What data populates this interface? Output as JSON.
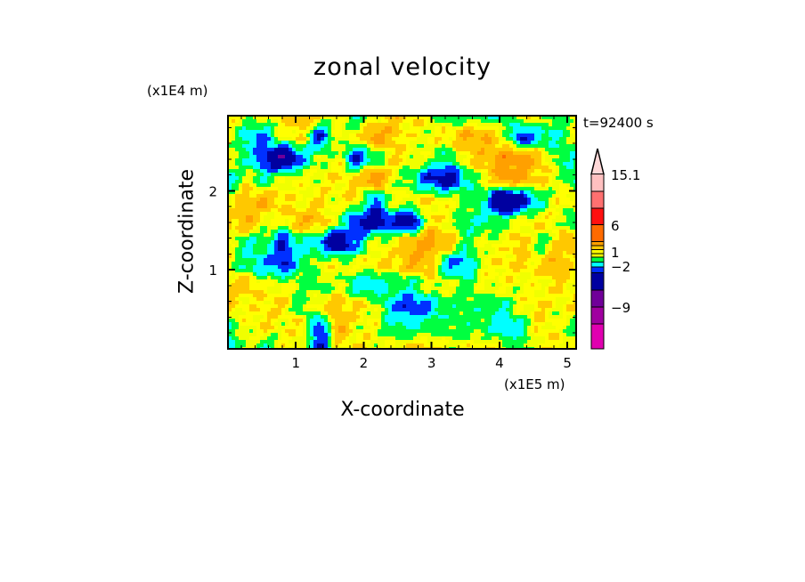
{
  "chart_data": {
    "type": "heatmap",
    "title": "zonal velocity",
    "xlabel": "X-coordinate",
    "ylabel": "Z-coordinate",
    "x_unit_label": "(x1E5 m)",
    "y_unit_label": "(x1E4 m)",
    "time_label": "t=92400 s",
    "xlim": [
      0,
      5.13
    ],
    "ylim": [
      0,
      2.95
    ],
    "xticks": [
      "1",
      "2",
      "3",
      "4",
      "5"
    ],
    "xtick_values": [
      1,
      2,
      3,
      4,
      5
    ],
    "yticks": [
      "1",
      "2"
    ],
    "ytick_values": [
      1,
      2
    ],
    "colorbar": {
      "labels": [
        "15.1",
        "6",
        "1",
        "−2",
        "−9"
      ],
      "levels": [
        {
          "max": 15.1,
          "color": "#ffc0c0"
        },
        {
          "max": 12,
          "color": "#ff7070"
        },
        {
          "max": 9,
          "color": "#ff1010"
        },
        {
          "max": 6,
          "color": "#ff6a00"
        },
        {
          "max": 3,
          "color": "#ffa000"
        },
        {
          "max": 2,
          "color": "#ffc800"
        },
        {
          "max": 1,
          "color": "#ffff00"
        },
        {
          "max": 0.5,
          "color": "#f0ff00"
        },
        {
          "max": 0,
          "color": "#00ff40"
        },
        {
          "max": -1,
          "color": "#00ffff"
        },
        {
          "max": -2,
          "color": "#0030ff"
        },
        {
          "max": -3,
          "color": "#0000a0"
        },
        {
          "max": -6,
          "color": "#700099"
        },
        {
          "max": -9,
          "color": "#a000a0"
        },
        {
          "max": -12,
          "color": "#e000b0"
        }
      ],
      "over_color": "#ffd8d8"
    },
    "grid_note": "rows from top (high Z) to bottom, columns left to right; values approximate",
    "values": [
      [
        0.5,
        0.5,
        0.5,
        1,
        2,
        1,
        0.5,
        -1,
        0.5,
        1.5,
        1,
        0.5,
        -0.5,
        -0.5,
        -0.5,
        -1,
        0.5,
        0.5,
        -0.5,
        0.5
      ],
      [
        0.5,
        -1.5,
        -2,
        0.5,
        1,
        -3,
        0.5,
        0.5,
        2.5,
        1.5,
        0.5,
        0.5,
        1,
        2,
        2,
        0.5,
        -3,
        -1.5,
        -1,
        0.5
      ],
      [
        0.5,
        -1,
        -3,
        -6,
        -2,
        0,
        0.5,
        -3,
        -1,
        1,
        0.5,
        0,
        -1,
        1,
        1.5,
        2.5,
        2.5,
        1.5,
        -0.5,
        -1
      ],
      [
        -1.5,
        0.5,
        -1,
        0.5,
        0.5,
        0.5,
        1,
        1,
        3,
        0.5,
        -0.5,
        -3,
        -4,
        -1.5,
        0.5,
        2.5,
        2,
        1,
        0.5,
        -1
      ],
      [
        0.5,
        1.5,
        2,
        1,
        0.5,
        1,
        0.5,
        1,
        -2.5,
        0.5,
        0.5,
        1,
        0.5,
        0,
        -1,
        -6,
        -4,
        -1,
        0.5,
        1
      ],
      [
        1,
        2,
        0.5,
        0.5,
        2,
        1.5,
        0,
        -3,
        -4,
        -3,
        -4,
        1,
        0.5,
        -1,
        -1,
        -0.5,
        0.5,
        1,
        0.5,
        -1
      ],
      [
        0.5,
        -1,
        -0.5,
        -3,
        -1,
        -2,
        -5,
        -2,
        0.5,
        0.5,
        2,
        2.5,
        1.5,
        -0.5,
        0.5,
        0.5,
        1.5,
        -0.5,
        1,
        2
      ],
      [
        0.5,
        -1,
        -2,
        -3,
        -1,
        0.5,
        0.5,
        0.5,
        1,
        1,
        2,
        1.5,
        -2,
        -2,
        0.5,
        1,
        1,
        1,
        2,
        0.5
      ],
      [
        1,
        1.5,
        0.5,
        0.5,
        0,
        -0.5,
        0.5,
        -1.5,
        -2,
        -0.5,
        -1,
        0.5,
        0.5,
        -0.5,
        0.5,
        0.5,
        0.5,
        0.5,
        1,
        0.5
      ],
      [
        1.5,
        0.5,
        1,
        1,
        -0.5,
        1,
        1.5,
        1,
        0.5,
        -2,
        -3,
        -2,
        -0.5,
        -0.5,
        -0.5,
        -1,
        0.5,
        1,
        0.5,
        1
      ],
      [
        -1,
        0.5,
        1,
        0.5,
        1,
        -3,
        2,
        0.5,
        0.5,
        -1,
        -1,
        -0.5,
        -0.5,
        -0.5,
        -0.5,
        -2,
        -1,
        1,
        0.5,
        -0.5
      ],
      [
        -2,
        0.5,
        -1,
        0.5,
        0.5,
        -3,
        0.5,
        1,
        0.5,
        0.5,
        1,
        1.5,
        0.5,
        0.5,
        1,
        0.5,
        -0.5,
        0.5,
        1,
        0.5
      ]
    ]
  }
}
